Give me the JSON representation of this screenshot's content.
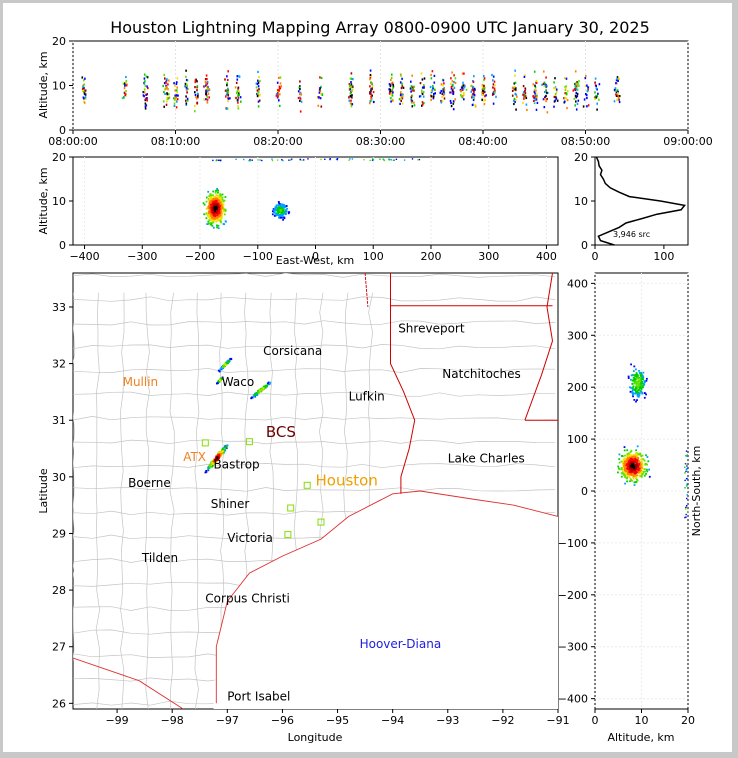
{
  "title": "Houston Lightning Mapping Array 0800-0900 UTC January 30, 2025",
  "colors": {
    "background": "#ffffff",
    "frame": "#c8c8c8",
    "state_border": "#d00000",
    "county_line": "#bbbbbb",
    "coast": "#e03030"
  },
  "chart_data": [
    {
      "type": "scatter",
      "panel": "time-altitude",
      "ylabel": "Altitude, km",
      "ylim": [
        0,
        20
      ],
      "yticks": [
        "0",
        "10",
        "20"
      ],
      "xlim": [
        "08:00:00",
        "09:00:00"
      ],
      "xticks": [
        "08:00:00",
        "08:10:00",
        "08:20:00",
        "08:30:00",
        "08:40:00",
        "08:50:00",
        "09:00:00"
      ],
      "clusters_minutes": [
        1,
        5,
        7,
        9,
        10,
        11,
        12,
        13,
        15,
        16,
        18,
        20,
        22,
        24,
        27,
        29,
        31,
        32,
        33,
        34,
        35,
        36,
        37,
        38,
        39,
        40,
        41,
        43,
        44,
        45,
        46,
        47,
        48,
        49,
        50,
        51,
        53
      ]
    },
    {
      "type": "scatter",
      "panel": "east-west-altitude",
      "xlabel": "East-West, km",
      "ylabel": "Altitude, km",
      "xlim": [
        -420,
        420
      ],
      "ylim": [
        0,
        20
      ],
      "xticks": [
        "−400",
        "−300",
        "−200",
        "−100",
        "0",
        "100",
        "200",
        "300",
        "400"
      ],
      "yticks": [
        "0",
        "10",
        "20"
      ],
      "clusters": [
        {
          "x_center": -175,
          "x_spread": 25,
          "z_center": 8.5,
          "z_spread": 5
        },
        {
          "x_center": -62,
          "x_spread": 20,
          "z_center": 8,
          "z_spread": 2.5
        }
      ]
    },
    {
      "type": "line",
      "panel": "altitude-histogram",
      "xlim": [
        0,
        135
      ],
      "ylim": [
        0,
        20
      ],
      "xticks": [
        "0",
        "100"
      ],
      "yticks": [
        "0",
        "10",
        "20"
      ],
      "annotation": "3,946 src",
      "profile": [
        {
          "z": 0,
          "n": 28
        },
        {
          "z": 1,
          "n": 8
        },
        {
          "z": 2,
          "n": 5
        },
        {
          "z": 3,
          "n": 20
        },
        {
          "z": 4,
          "n": 35
        },
        {
          "z": 5,
          "n": 45
        },
        {
          "z": 6,
          "n": 68
        },
        {
          "z": 7,
          "n": 90
        },
        {
          "z": 8,
          "n": 125
        },
        {
          "z": 9,
          "n": 130
        },
        {
          "z": 10,
          "n": 95
        },
        {
          "z": 11,
          "n": 50
        },
        {
          "z": 12,
          "n": 35
        },
        {
          "z": 13,
          "n": 22
        },
        {
          "z": 14,
          "n": 15
        },
        {
          "z": 15,
          "n": 12
        },
        {
          "z": 16,
          "n": 8
        },
        {
          "z": 17,
          "n": 10
        },
        {
          "z": 18,
          "n": 6
        },
        {
          "z": 19,
          "n": 5
        },
        {
          "z": 20,
          "n": 2
        }
      ]
    },
    {
      "type": "scatter",
      "panel": "plan-view-map",
      "xlabel": "Longitude",
      "ylabel": "Latitude",
      "xlim": [
        -99.8,
        -91
      ],
      "ylim": [
        25.9,
        33.6
      ],
      "xticks": [
        "−99",
        "−98",
        "−97",
        "−96",
        "−95",
        "−94",
        "−93",
        "−92",
        "−91"
      ],
      "yticks": [
        "26",
        "27",
        "28",
        "29",
        "30",
        "31",
        "32",
        "33"
      ],
      "clusters": [
        {
          "lon": -97.2,
          "lat": 30.35,
          "dlon": 0.25,
          "dlat": 0.3
        },
        {
          "lon": -97.05,
          "lat": 32.0,
          "dlon": 0.15,
          "dlat": 0.15
        },
        {
          "lon": -97.15,
          "lat": 31.72,
          "dlon": 0.08,
          "dlat": 0.08
        },
        {
          "lon": -96.4,
          "lat": 31.55,
          "dlon": 0.25,
          "dlat": 0.2
        }
      ]
    },
    {
      "type": "scatter",
      "panel": "north-south-altitude",
      "xlabel": "Altitude, km",
      "ylabel": "North-South, km",
      "xlim": [
        0,
        20
      ],
      "ylim": [
        -420,
        420
      ],
      "xticks": [
        "0",
        "10",
        "20"
      ],
      "yticks": [
        "−400",
        "−300",
        "−200",
        "−100",
        "0",
        "100",
        "200",
        "300",
        "400"
      ],
      "clusters": [
        {
          "y_center": 50,
          "y_spread": 40,
          "z_center": 8,
          "z_spread": 4
        },
        {
          "y_center": 210,
          "y_spread": 40,
          "z_center": 9,
          "z_spread": 2.5
        }
      ]
    }
  ],
  "map_labels": [
    {
      "text": "Shreveport",
      "color": "#000000"
    },
    {
      "text": "Corsicana",
      "color": "#000000"
    },
    {
      "text": "Natchitoches",
      "color": "#000000"
    },
    {
      "text": "Mullin",
      "color": "#f08020"
    },
    {
      "text": "Waco",
      "color": "#000000"
    },
    {
      "text": "Lufkin",
      "color": "#000000"
    },
    {
      "text": "BCS",
      "color": "#6a0000"
    },
    {
      "text": "ATX",
      "color": "#f08020"
    },
    {
      "text": "Bastrop",
      "color": "#000000"
    },
    {
      "text": "Lake Charles",
      "color": "#000000"
    },
    {
      "text": "Boerne",
      "color": "#000000"
    },
    {
      "text": "Houston",
      "color": "#f0a000"
    },
    {
      "text": "Shiner",
      "color": "#000000"
    },
    {
      "text": "Victoria",
      "color": "#000000"
    },
    {
      "text": "Tilden",
      "color": "#000000"
    },
    {
      "text": "Corpus Christi",
      "color": "#000000"
    },
    {
      "text": "Hoover-Diana",
      "color": "#2020e0"
    },
    {
      "text": "Port Isabel",
      "color": "#000000"
    }
  ]
}
